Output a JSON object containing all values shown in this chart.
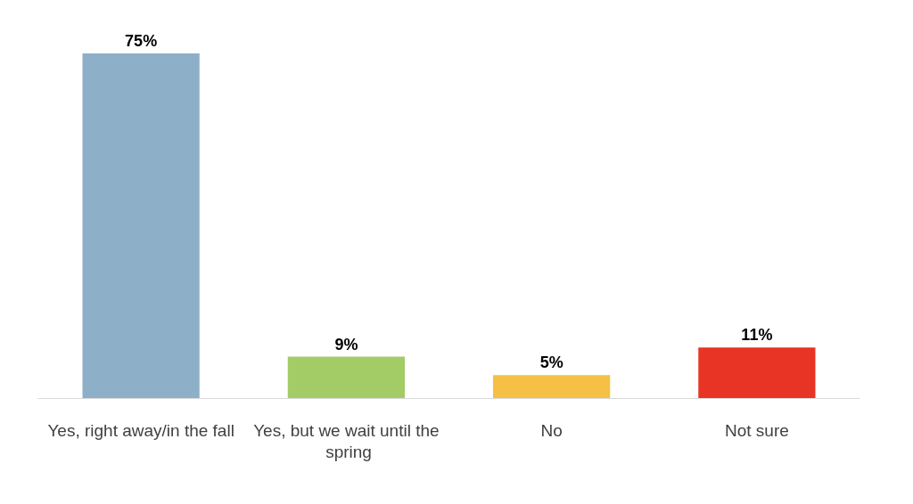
{
  "chart_data": {
    "type": "bar",
    "categories": [
      "Yes, right away/in the fall",
      "Yes, but we wait until the spring",
      "No",
      "Not sure"
    ],
    "values": [
      75,
      9,
      5,
      11
    ],
    "colors": [
      "#8eafc8",
      "#a3cc66",
      "#f5c043",
      "#e83424"
    ],
    "value_labels": [
      "75%",
      "9%",
      "5%",
      "11%"
    ]
  }
}
